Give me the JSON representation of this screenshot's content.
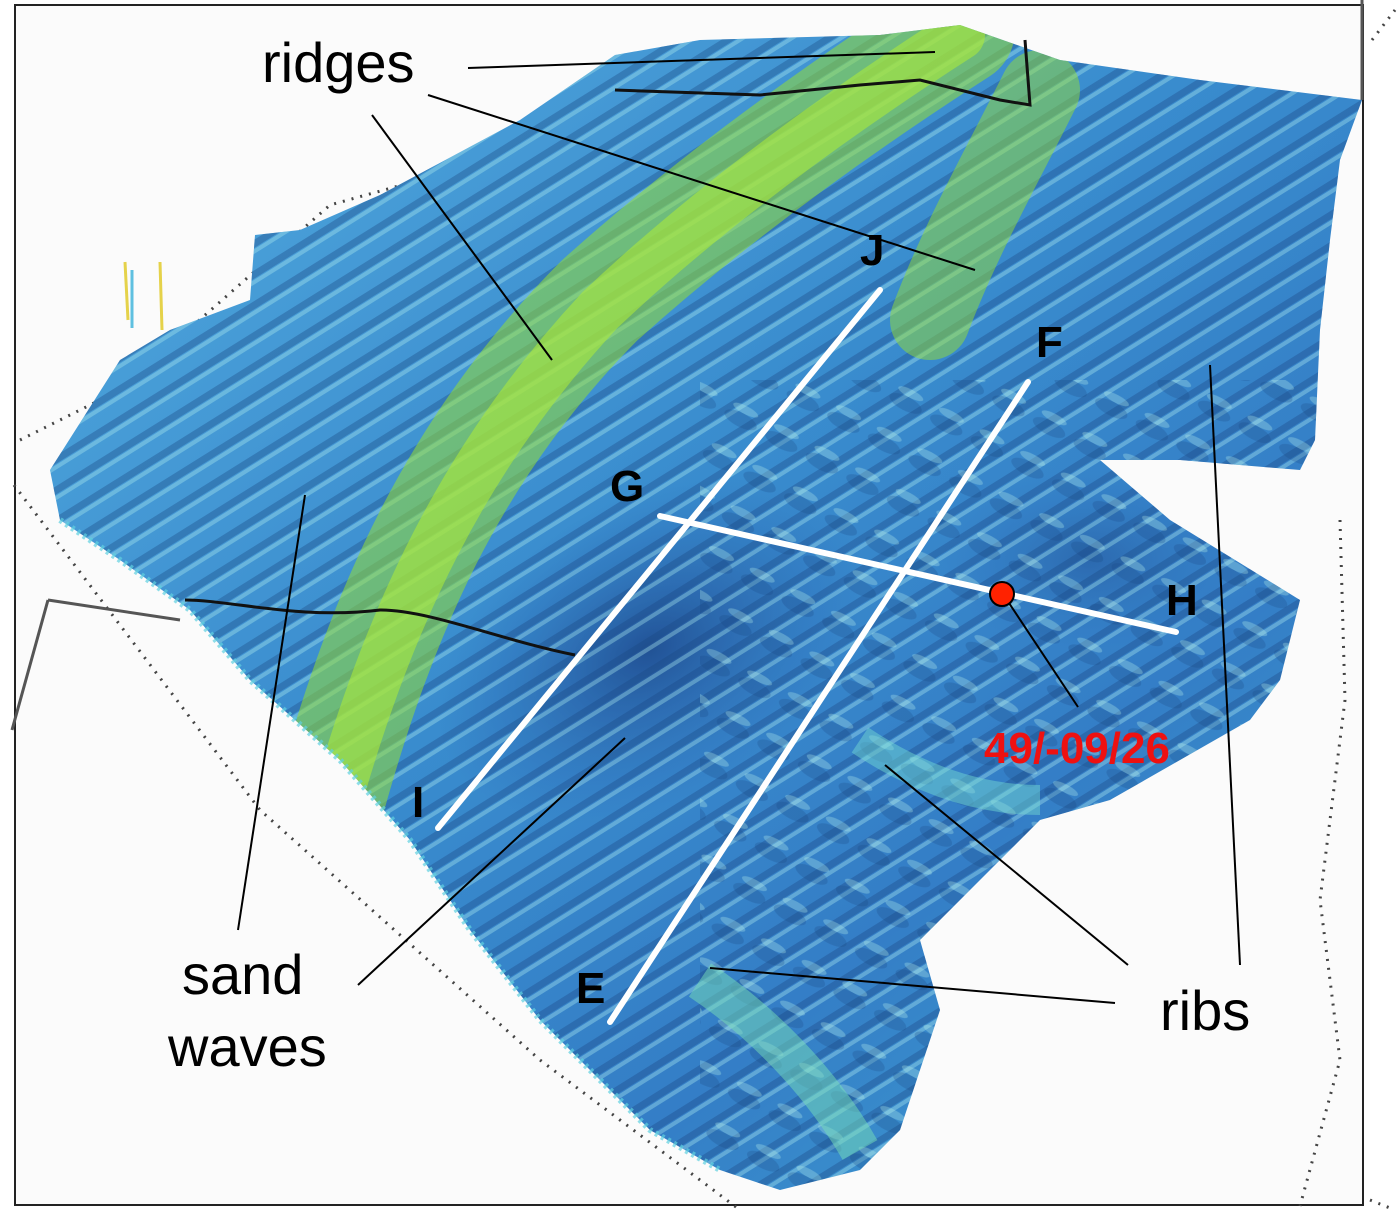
{
  "labels": {
    "ridges": "ridges",
    "sand": "sand",
    "waves": "waves",
    "ribs": "ribs",
    "point_label": "49/-09/26"
  },
  "profile_letters": {
    "J": "J",
    "F": "F",
    "G": "G",
    "H": "H",
    "I": "I",
    "E": "E"
  },
  "colors": {
    "deep": "#1f5fb0",
    "mid": "#3aa0dc",
    "shallow": "#5fd0e0",
    "crest": "#8fdc2a",
    "profile_line": "#ffffff",
    "marker": "#ff2200",
    "annotation_text": "#ee1111"
  }
}
